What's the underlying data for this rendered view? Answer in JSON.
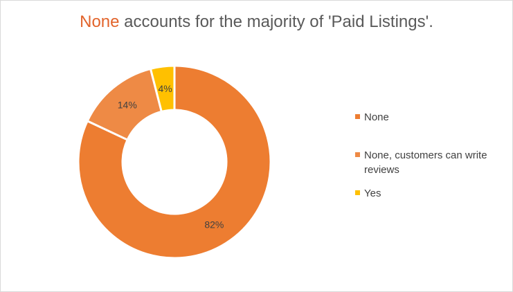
{
  "title": {
    "highlight": "None",
    "rest": " accounts for the majority of 'Paid Listings'."
  },
  "colors": {
    "highlight_text": "#e2642b",
    "separator": "#ffffff"
  },
  "chart_data": {
    "type": "pie",
    "donut": true,
    "title": "None accounts for the majority of 'Paid Listings'.",
    "categories": [
      "None",
      "None, customers can write reviews",
      "Yes"
    ],
    "values": [
      82,
      14,
      4
    ],
    "labels": [
      "82%",
      "14%",
      "4%"
    ],
    "colors": [
      "#ed7d31",
      "#ee8a45",
      "#ffc000"
    ],
    "legend": "right",
    "start": "top, clockwise"
  }
}
